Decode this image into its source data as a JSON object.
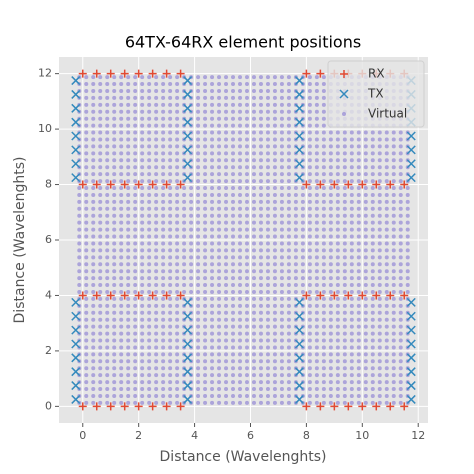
{
  "chart_data": {
    "type": "scatter",
    "title": "64TX-64RX element positions",
    "x_label": "Distance (Wavelenghts)",
    "y_label": "Distance (Wavelenghts)",
    "xlim": [
      -0.85,
      12.35
    ],
    "ylim": [
      -0.6,
      12.6
    ],
    "xticks": [
      0,
      2,
      4,
      6,
      8,
      10,
      12
    ],
    "yticks": [
      0,
      2,
      4,
      6,
      8,
      10,
      12
    ],
    "grid": true,
    "legend": "upper right",
    "series": [
      {
        "name": "RX",
        "marker": "+",
        "color": "#e24a33",
        "x": [
          0,
          0.5,
          1,
          1.5,
          2,
          2.5,
          3,
          3.5,
          8,
          8.5,
          9,
          9.5,
          10,
          10.5,
          11,
          11.5,
          0,
          0.5,
          1,
          1.5,
          2,
          2.5,
          3,
          3.5,
          8,
          8.5,
          9,
          9.5,
          10,
          10.5,
          11,
          11.5,
          0,
          0.5,
          1,
          1.5,
          2,
          2.5,
          3,
          3.5,
          8,
          8.5,
          9,
          9.5,
          10,
          10.5,
          11,
          11.5,
          0,
          0.5,
          1,
          1.5,
          2,
          2.5,
          3,
          3.5,
          8,
          8.5,
          9,
          9.5,
          10,
          10.5,
          11,
          11.5
        ],
        "y": [
          0,
          0,
          0,
          0,
          0,
          0,
          0,
          0,
          0,
          0,
          0,
          0,
          0,
          0,
          0,
          0,
          4,
          4,
          4,
          4,
          4,
          4,
          4,
          4,
          4,
          4,
          4,
          4,
          4,
          4,
          4,
          4,
          8,
          8,
          8,
          8,
          8,
          8,
          8,
          8,
          8,
          8,
          8,
          8,
          8,
          8,
          8,
          8,
          12,
          12,
          12,
          12,
          12,
          12,
          12,
          12,
          12,
          12,
          12,
          12,
          12,
          12,
          12,
          12
        ]
      },
      {
        "name": "TX",
        "marker": "x",
        "color": "#348abd",
        "x": [
          -0.25,
          -0.25,
          -0.25,
          -0.25,
          -0.25,
          -0.25,
          -0.25,
          -0.25,
          -0.25,
          -0.25,
          -0.25,
          -0.25,
          -0.25,
          -0.25,
          -0.25,
          -0.25,
          3.75,
          3.75,
          3.75,
          3.75,
          3.75,
          3.75,
          3.75,
          3.75,
          3.75,
          3.75,
          3.75,
          3.75,
          3.75,
          3.75,
          3.75,
          3.75,
          7.75,
          7.75,
          7.75,
          7.75,
          7.75,
          7.75,
          7.75,
          7.75,
          7.75,
          7.75,
          7.75,
          7.75,
          7.75,
          7.75,
          7.75,
          7.75,
          11.75,
          11.75,
          11.75,
          11.75,
          11.75,
          11.75,
          11.75,
          11.75,
          11.75,
          11.75,
          11.75,
          11.75,
          11.75,
          11.75,
          11.75,
          11.75
        ],
        "y": [
          0.25,
          0.75,
          1.25,
          1.75,
          2.25,
          2.75,
          3.25,
          3.75,
          8.25,
          8.75,
          9.25,
          9.75,
          10.25,
          10.75,
          11.25,
          11.75,
          0.25,
          0.75,
          1.25,
          1.75,
          2.25,
          2.75,
          3.25,
          3.75,
          8.25,
          8.75,
          9.25,
          9.75,
          10.25,
          10.75,
          11.25,
          11.75,
          0.25,
          0.75,
          1.25,
          1.75,
          2.25,
          2.75,
          3.25,
          3.75,
          8.25,
          8.75,
          9.25,
          9.75,
          10.25,
          10.75,
          11.25,
          11.75,
          0.25,
          0.75,
          1.25,
          1.75,
          2.25,
          2.75,
          3.25,
          3.75,
          8.25,
          8.75,
          9.25,
          9.75,
          10.25,
          10.75,
          11.25,
          11.75
        ]
      },
      {
        "name": "Virtual",
        "marker": "o",
        "color": "#988ed5",
        "grid_x": [
          -0.125,
          0.125,
          0.375,
          0.625,
          0.875,
          1.125,
          1.375,
          1.625,
          1.875,
          2.125,
          2.375,
          2.625,
          2.875,
          3.125,
          3.375,
          3.625,
          3.875,
          4.125,
          4.375,
          4.625,
          4.875,
          5.125,
          5.375,
          5.625,
          5.875,
          6.125,
          6.375,
          6.625,
          6.875,
          7.125,
          7.375,
          7.625,
          7.875,
          8.125,
          8.375,
          8.625,
          8.875,
          9.125,
          9.375,
          9.625,
          9.875,
          10.125,
          10.375,
          10.625,
          10.875,
          11.125,
          11.375,
          11.625
        ],
        "grid_y": [
          0.125,
          0.375,
          0.625,
          0.875,
          1.125,
          1.375,
          1.625,
          1.875,
          2.125,
          2.375,
          2.625,
          2.875,
          3.125,
          3.375,
          3.625,
          3.875,
          4.125,
          4.375,
          4.625,
          4.875,
          5.125,
          5.375,
          5.625,
          5.875,
          6.125,
          6.375,
          6.625,
          6.875,
          7.125,
          7.375,
          7.625,
          7.875,
          8.125,
          8.375,
          8.625,
          8.875,
          9.125,
          9.375,
          9.625,
          9.875,
          10.125,
          10.375,
          10.625,
          10.875,
          11.125,
          11.375,
          11.625,
          11.875
        ]
      }
    ]
  }
}
